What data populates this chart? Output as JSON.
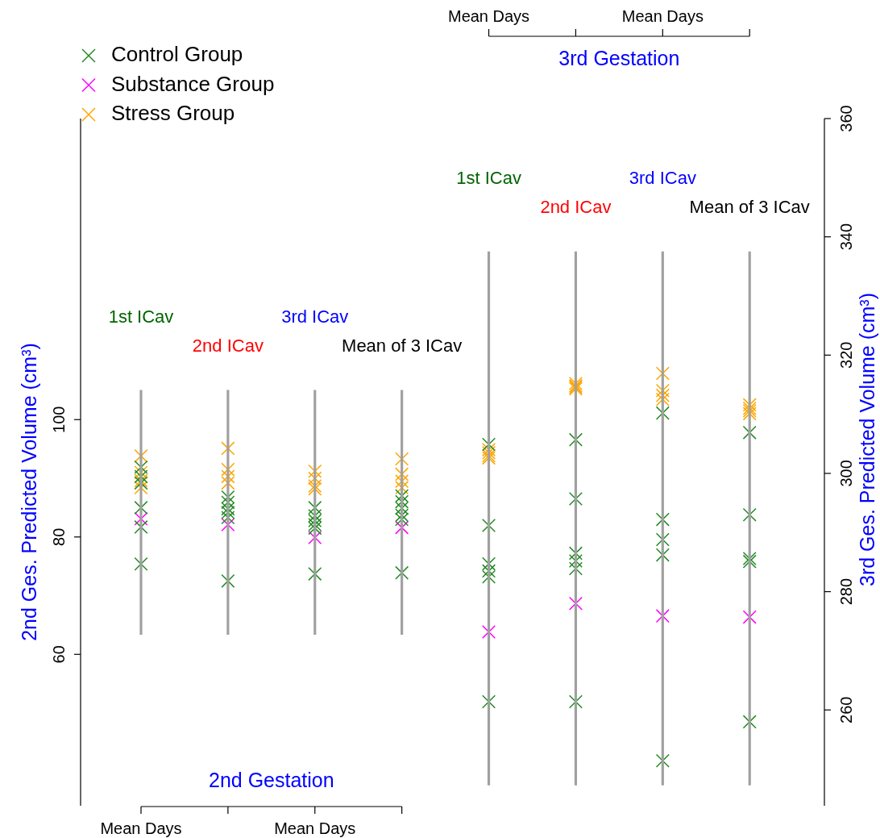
{
  "chart_data": {
    "type": "scatter",
    "xlabel": "2nd Gestation",
    "x2label": "3rd Gestation",
    "ylabel": "2nd Ges. Predicted Volume (cm³)",
    "y2label": "3rd Ges. Predicted Volume (cm³)",
    "categories": [
      "Mean Days",
      null,
      "Mean Days",
      null,
      null,
      null,
      null,
      null
    ],
    "ylim": [
      34.2,
      151.3
    ],
    "yticks": [
      60,
      80,
      100
    ],
    "y2lim": [
      243.8,
      360
    ],
    "y2ticks": [
      260,
      280,
      300,
      320,
      340,
      360
    ],
    "marker": "cross",
    "legend": "top left",
    "annotations": [
      "1st ICav",
      "2nd ICav",
      "3rd ICav",
      "Mean of 3 ICav",
      "1st ICav",
      "2nd ICav",
      "3rd ICav",
      "Mean of 3 ICav",
      "Mean Days",
      "Mean Days"
    ],
    "series": [
      {
        "type": "bar",
        "color": "#a0a0a0",
        "base": [
          63.4,
          63.4,
          63.4,
          63.4,
          null,
          null,
          null,
          null
        ],
        "values": [
          41.6,
          41.6,
          41.6,
          41.6,
          null,
          null,
          null,
          null
        ]
      },
      {
        "type": "bar",
        "axis": "y2",
        "color": "#a0a0a0",
        "base": [
          null,
          null,
          null,
          null,
          247.3,
          247.3,
          247.3,
          247.3
        ],
        "values": [
          null,
          null,
          null,
          null,
          90.2,
          90.2,
          90.2,
          90.2
        ]
      },
      {
        "name": "Control Group",
        "color": "#228b22",
        "values": [
          91.9,
          86.8,
          85.0,
          87.0,
          null,
          null,
          null,
          null
        ]
      },
      {
        "color": "#228b22",
        "values": [
          90.3,
          85.9,
          83.6,
          86.0,
          null,
          null,
          null,
          null
        ]
      },
      {
        "color": "#228b22",
        "values": [
          89.2,
          84.8,
          82.8,
          84.9,
          null,
          null,
          null,
          null
        ]
      },
      {
        "color": "#228b22",
        "values": [
          85.0,
          84.2,
          82.1,
          83.7,
          null,
          null,
          null,
          null
        ]
      },
      {
        "color": "#228b22",
        "values": [
          81.7,
          83.3,
          81.5,
          83.0,
          null,
          null,
          null,
          null
        ]
      },
      {
        "color": "#228b22",
        "values": [
          75.4,
          72.5,
          73.7,
          73.9,
          null,
          null,
          null,
          null
        ]
      },
      {
        "axis": "y2",
        "color": "#228b22",
        "values": [
          null,
          null,
          null,
          null,
          304.9,
          305.7,
          310.2,
          306.9
        ]
      },
      {
        "axis": "y2",
        "color": "#228b22",
        "values": [
          null,
          null,
          null,
          null,
          291.2,
          295.7,
          292.2,
          293.0
        ]
      },
      {
        "axis": "y2",
        "color": "#228b22",
        "values": [
          null,
          null,
          null,
          null,
          284.7,
          286.5,
          288.8,
          285.6
        ]
      },
      {
        "axis": "y2",
        "color": "#228b22",
        "values": [
          null,
          null,
          null,
          null,
          283.5,
          285.2,
          286.2,
          285.1
        ]
      },
      {
        "axis": "y2",
        "color": "#228b22",
        "values": [
          null,
          null,
          null,
          null,
          282.5,
          283.9,
          251.4,
          258.0
        ]
      },
      {
        "axis": "y2",
        "color": "#228b22",
        "values": [
          null,
          null,
          null,
          null,
          261.4,
          261.4,
          null,
          null
        ]
      },
      {
        "name": "Substance Group",
        "color": "#ff00ff",
        "values": [
          83.1,
          82.1,
          79.9,
          81.6,
          null,
          null,
          null,
          null
        ]
      },
      {
        "axis": "y2",
        "color": "#ff00ff",
        "values": [
          null,
          null,
          null,
          null,
          273.2,
          278.0,
          275.9,
          275.7
        ]
      },
      {
        "name": "Stress Group",
        "color": "#ffa500",
        "values": [
          93.8,
          95.1,
          91.2,
          93.3,
          null,
          null,
          null,
          null
        ]
      },
      {
        "color": "#ffa500",
        "values": [
          91.0,
          91.5,
          90.0,
          90.7,
          null,
          null,
          null,
          null
        ]
      },
      {
        "color": "#ffa500",
        "values": [
          89.6,
          90.3,
          88.7,
          89.5,
          null,
          null,
          null,
          null
        ]
      },
      {
        "color": "#ffa500",
        "values": [
          88.4,
          89.2,
          88.2,
          88.4,
          null,
          null,
          null,
          null
        ]
      },
      {
        "axis": "y2",
        "color": "#ffa500",
        "values": [
          null,
          null,
          null,
          null,
          304.0,
          315.2,
          316.9,
          311.6
        ]
      },
      {
        "axis": "y2",
        "color": "#ffa500",
        "values": [
          null,
          null,
          null,
          null,
          303.5,
          314.8,
          314.0,
          311.0
        ]
      },
      {
        "axis": "y2",
        "color": "#ffa500",
        "values": [
          null,
          null,
          null,
          null,
          303.0,
          314.6,
          313.2,
          310.6
        ]
      },
      {
        "axis": "y2",
        "color": "#ffa500",
        "values": [
          null,
          null,
          null,
          null,
          302.6,
          314.3,
          312.5,
          310.1
        ]
      }
    ]
  }
}
